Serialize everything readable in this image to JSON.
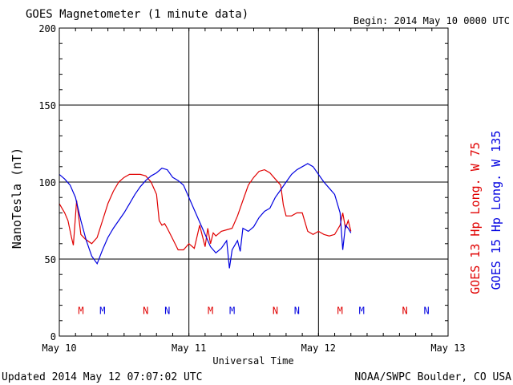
{
  "chart_data": {
    "type": "line",
    "title": "GOES Magnetometer (1 minute data)",
    "begin_label": "Begin:  2014 May 10 0000 UTC",
    "xlabel": "Universal Time",
    "ylabel": "NanoTesla (nT)",
    "ylim": [
      0,
      200
    ],
    "xlim": [
      0,
      72
    ],
    "x_unit": "hours since 2014 May 10 0000 UTC",
    "y_ticks": [
      "0",
      "50",
      "100",
      "150",
      "200"
    ],
    "x_ticks": [
      {
        "x": 0,
        "label": "May 10"
      },
      {
        "x": 24,
        "label": "May 11"
      },
      {
        "x": 48,
        "label": "May 12"
      },
      {
        "x": 72,
        "label": "May 13"
      }
    ],
    "grid": true,
    "series": [
      {
        "name": "GOES 13 Hp",
        "legend": "GOES 13 Hp  Long. W 75",
        "color": "#e00000",
        "x": [
          0,
          1,
          1.6,
          2.2,
          2.6,
          3.2,
          4,
          4.8,
          6,
          7,
          8,
          9,
          10,
          11,
          12,
          13,
          14,
          15,
          16,
          17,
          18,
          18.5,
          19,
          19.5,
          20,
          21,
          22,
          23,
          24,
          25,
          26,
          27,
          27.5,
          28,
          28.5,
          29,
          30,
          31,
          32,
          33,
          34,
          35,
          36,
          37,
          38,
          39,
          40,
          41,
          41.5,
          42,
          43,
          44,
          45,
          46,
          47,
          48,
          49,
          50,
          51,
          52,
          52.5,
          53,
          53.5,
          54
        ],
        "y": [
          86,
          80,
          75,
          65,
          59,
          88,
          66,
          63,
          60,
          64,
          75,
          86,
          94,
          100,
          103,
          105,
          105,
          105,
          104,
          100,
          92,
          75,
          72,
          73,
          70,
          63,
          56,
          56,
          60,
          57,
          72,
          58,
          70,
          60,
          67,
          65,
          68,
          69,
          70,
          78,
          88,
          98,
          103,
          107,
          108,
          106,
          102,
          98,
          85,
          78,
          78,
          80,
          80,
          68,
          66,
          68,
          66,
          65,
          66,
          72,
          80,
          70,
          75,
          68
        ]
      },
      {
        "name": "GOES 15 Hp",
        "legend": "GOES 15 Hp  Long. W 135",
        "color": "#0000e0",
        "x": [
          0,
          1,
          2,
          3,
          4,
          5,
          6,
          7,
          8,
          9,
          10,
          11,
          12,
          13,
          14,
          15,
          16,
          17,
          18,
          19,
          20,
          21,
          22,
          23,
          24,
          25,
          26,
          27,
          28,
          29,
          30,
          31,
          31.5,
          32,
          33,
          33.5,
          34,
          35,
          36,
          37,
          38,
          39,
          40,
          41,
          42,
          43,
          44,
          45,
          46,
          47,
          48,
          49,
          50,
          51,
          52,
          52.5,
          53,
          53.5,
          54
        ],
        "y": [
          105,
          102,
          98,
          90,
          75,
          62,
          52,
          47,
          56,
          64,
          70,
          75,
          80,
          86,
          92,
          97,
          101,
          104,
          106,
          109,
          108,
          103,
          101,
          98,
          90,
          82,
          74,
          66,
          58,
          54,
          57,
          62,
          44,
          56,
          62,
          55,
          70,
          68,
          71,
          77,
          81,
          83,
          90,
          95,
          100,
          105,
          108,
          110,
          112,
          110,
          105,
          100,
          96,
          92,
          80,
          56,
          72,
          70,
          67
        ]
      }
    ],
    "markers": {
      "labels": [
        "M",
        "M",
        "N",
        "N",
        "M",
        "M",
        "N",
        "N",
        "M",
        "M",
        "N",
        "N"
      ],
      "x": [
        4,
        8,
        16,
        20,
        28,
        32,
        40,
        44,
        52,
        56,
        64,
        68
      ],
      "colors": [
        "#e00000",
        "#0000e0",
        "#e00000",
        "#0000e0",
        "#e00000",
        "#0000e0",
        "#e00000",
        "#0000e0",
        "#e00000",
        "#0000e0",
        "#e00000",
        "#0000e0"
      ],
      "y": 17
    },
    "footer_left": "Updated 2014 May 12 07:07:02 UTC",
    "footer_right": "NOAA/SWPC Boulder, CO USA"
  }
}
